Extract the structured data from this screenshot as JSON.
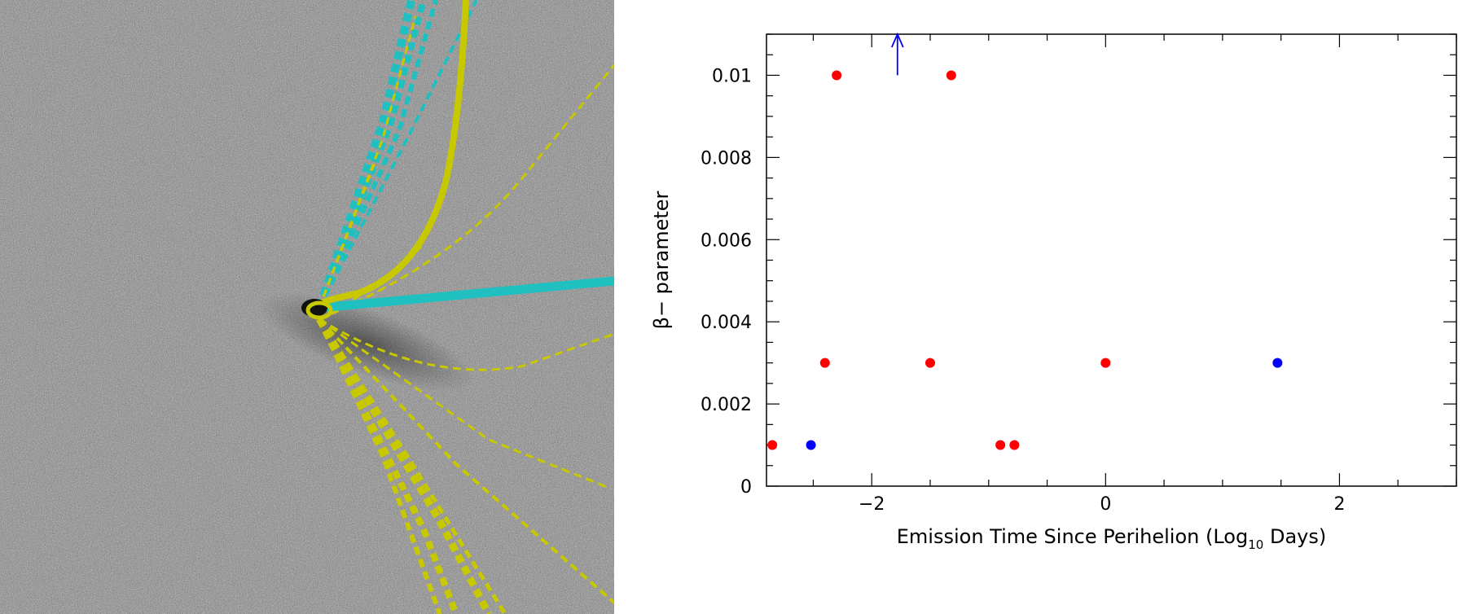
{
  "figure": {
    "image_panel": {
      "kind": "comet-dust-image",
      "background": "speckled grey noise",
      "overlays": [
        {
          "name": "syndyne-curve",
          "color": "#c8c800",
          "style": "solid"
        },
        {
          "name": "synchrone-line",
          "color": "#20c0c0",
          "style": "solid"
        },
        {
          "name": "dashed-yellow-curves",
          "color": "#c8c800",
          "style": "dashed"
        },
        {
          "name": "dashed-cyan-lines",
          "color": "#20c0c0",
          "style": "dashed"
        }
      ]
    }
  },
  "chart_data": {
    "type": "scatter",
    "xlabel_main": "Emission Time Since Perihelion (Log",
    "xlabel_sub": "10",
    "xlabel_tail": " Days)",
    "ylabel": "β− parameter",
    "xlim": [
      -2.9,
      3.0
    ],
    "ylim": [
      0,
      0.011
    ],
    "xticks": [
      -2,
      0,
      2
    ],
    "xtick_labels": [
      "−2",
      "0",
      "2"
    ],
    "yticks": [
      0,
      0.002,
      0.004,
      0.006,
      0.008,
      0.01
    ],
    "ytick_labels": [
      "0",
      "0.002",
      "0.004",
      "0.006",
      "0.008",
      "0.01"
    ],
    "grid": false,
    "series": [
      {
        "color": "#ff0000",
        "points": [
          {
            "x": -2.85,
            "y": 0.001
          },
          {
            "x": -2.4,
            "y": 0.003
          },
          {
            "x": -2.3,
            "y": 0.01
          },
          {
            "x": -1.5,
            "y": 0.003
          },
          {
            "x": -1.32,
            "y": 0.01
          },
          {
            "x": -0.9,
            "y": 0.001
          },
          {
            "x": -0.78,
            "y": 0.001
          },
          {
            "x": 0.0,
            "y": 0.003
          }
        ]
      },
      {
        "color": "#0000ff",
        "points": [
          {
            "x": -2.52,
            "y": 0.001
          },
          {
            "x": 1.47,
            "y": 0.003
          }
        ]
      }
    ],
    "annotations": [
      {
        "type": "upper-arrow",
        "x": -1.78,
        "y_from": 0.01,
        "y_to": 0.011,
        "color": "#0000ff"
      }
    ]
  }
}
